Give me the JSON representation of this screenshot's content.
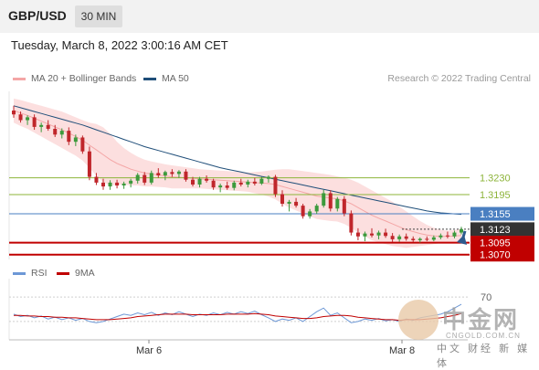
{
  "header": {
    "pair": "GBP/USD",
    "timeframe": "30 MIN"
  },
  "datetime": "Tuesday, March 8, 2022 3:00:16 AM CET",
  "legend": {
    "ma20_label": "MA 20 + Bollinger Bands",
    "ma50_label": "MA 50",
    "research": "Research © 2022 Trading Central"
  },
  "rsi_legend": {
    "rsi_label": "RSI",
    "ma_label": "9MA"
  },
  "colors": {
    "ma20": "#f4a6a6",
    "ma50": "#1f4e79",
    "bollinger_fill": "#fbd9d9",
    "support": "#c00000",
    "resistance_green": "#8db43a",
    "pivot_blue": "#4a7fc1",
    "current_price_bg": "#333333",
    "candle_up": "#3c9a3c",
    "candle_down": "#c0262b",
    "arrow": "#2e5a8e",
    "rsi": "#6d98d6",
    "rsi_ma": "#c00000"
  },
  "icons": {
    "watermark": "zhongjin-logo-icon",
    "trend_arrow": "down-arrow-icon"
  },
  "watermark": {
    "cn": "中金网",
    "en": "CNGOLD.COM.CN",
    "sub": "中文 财经 新 媒 体"
  },
  "chart_data": {
    "type": "candlestick",
    "title": "GBP/USD",
    "price_levels": [
      {
        "value": "1.3230",
        "kind": "resistance",
        "color": "green"
      },
      {
        "value": "1.3195",
        "kind": "resistance",
        "color": "green"
      },
      {
        "value": "1.3155",
        "kind": "pivot",
        "color": "blue"
      },
      {
        "value": "1.3123",
        "kind": "current",
        "color": "dark"
      },
      {
        "value": "1.3095",
        "kind": "support",
        "color": "red"
      },
      {
        "value": "1.3070",
        "kind": "support",
        "color": "red"
      }
    ],
    "ylim": [
      1.306,
      1.341
    ],
    "x_ticks": [
      "Mar 6",
      "Mar 8"
    ],
    "ohlc": [
      [
        1.337,
        1.338,
        1.3355,
        1.3362
      ],
      [
        1.3362,
        1.3368,
        1.3345,
        1.335
      ],
      [
        1.335,
        1.336,
        1.334,
        1.3356
      ],
      [
        1.3356,
        1.3362,
        1.333,
        1.3336
      ],
      [
        1.3336,
        1.3345,
        1.3325,
        1.334
      ],
      [
        1.334,
        1.335,
        1.3328,
        1.3332
      ],
      [
        1.3332,
        1.334,
        1.3315,
        1.332
      ],
      [
        1.332,
        1.3333,
        1.3312,
        1.3328
      ],
      [
        1.3328,
        1.3335,
        1.3298,
        1.3305
      ],
      [
        1.3305,
        1.332,
        1.3296,
        1.3314
      ],
      [
        1.3314,
        1.3318,
        1.328,
        1.3285
      ],
      [
        1.3285,
        1.3295,
        1.3225,
        1.3232
      ],
      [
        1.3232,
        1.324,
        1.3215,
        1.322
      ],
      [
        1.322,
        1.3228,
        1.3205,
        1.3212
      ],
      [
        1.3212,
        1.3225,
        1.3205,
        1.322
      ],
      [
        1.322,
        1.3226,
        1.3208,
        1.3214
      ],
      [
        1.3214,
        1.3222,
        1.3207,
        1.3218
      ],
      [
        1.3218,
        1.3228,
        1.321,
        1.3224
      ],
      [
        1.3224,
        1.324,
        1.3218,
        1.3236
      ],
      [
        1.3236,
        1.3242,
        1.3215,
        1.322
      ],
      [
        1.322,
        1.3245,
        1.3216,
        1.324
      ],
      [
        1.324,
        1.325,
        1.323,
        1.3235
      ],
      [
        1.3235,
        1.3245,
        1.3225,
        1.3242
      ],
      [
        1.3242,
        1.3248,
        1.3232,
        1.3238
      ],
      [
        1.3238,
        1.3246,
        1.323,
        1.3243
      ],
      [
        1.3243,
        1.3248,
        1.3222,
        1.3226
      ],
      [
        1.3226,
        1.3232,
        1.3212,
        1.3216
      ],
      [
        1.3216,
        1.3232,
        1.321,
        1.3228
      ],
      [
        1.3228,
        1.3235,
        1.322,
        1.3224
      ],
      [
        1.3224,
        1.3228,
        1.3205,
        1.321
      ],
      [
        1.321,
        1.3218,
        1.32,
        1.3214
      ],
      [
        1.3214,
        1.3222,
        1.3205,
        1.3209
      ],
      [
        1.3209,
        1.3224,
        1.3204,
        1.322
      ],
      [
        1.322,
        1.3228,
        1.3212,
        1.3216
      ],
      [
        1.3216,
        1.3226,
        1.321,
        1.3222
      ],
      [
        1.3222,
        1.323,
        1.3214,
        1.3218
      ],
      [
        1.3218,
        1.3232,
        1.3215,
        1.3228
      ],
      [
        1.3228,
        1.3235,
        1.322,
        1.3232
      ],
      [
        1.3232,
        1.3236,
        1.319,
        1.3196
      ],
      [
        1.3196,
        1.3204,
        1.317,
        1.3176
      ],
      [
        1.3176,
        1.3184,
        1.316,
        1.318
      ],
      [
        1.318,
        1.3188,
        1.3168,
        1.3172
      ],
      [
        1.3172,
        1.3176,
        1.3145,
        1.315
      ],
      [
        1.315,
        1.3165,
        1.3145,
        1.316
      ],
      [
        1.316,
        1.3176,
        1.3155,
        1.3172
      ],
      [
        1.3172,
        1.3205,
        1.3168,
        1.3198
      ],
      [
        1.3198,
        1.3204,
        1.316,
        1.3166
      ],
      [
        1.3166,
        1.319,
        1.316,
        1.3186
      ],
      [
        1.3186,
        1.3192,
        1.315,
        1.3156
      ],
      [
        1.3156,
        1.3162,
        1.311,
        1.3116
      ],
      [
        1.3116,
        1.3125,
        1.31,
        1.3108
      ],
      [
        1.3108,
        1.3118,
        1.3098,
        1.3114
      ],
      [
        1.3114,
        1.3125,
        1.3106,
        1.311
      ],
      [
        1.311,
        1.312,
        1.3102,
        1.3116
      ],
      [
        1.3116,
        1.3124,
        1.3105,
        1.3109
      ],
      [
        1.3109,
        1.3115,
        1.3096,
        1.3102
      ],
      [
        1.3102,
        1.3112,
        1.3097,
        1.3108
      ],
      [
        1.3108,
        1.3114,
        1.3099,
        1.3103
      ],
      [
        1.3103,
        1.3108,
        1.3096,
        1.31
      ],
      [
        1.31,
        1.3106,
        1.3095,
        1.3103
      ],
      [
        1.3103,
        1.3108,
        1.3098,
        1.3101
      ],
      [
        1.3101,
        1.311,
        1.3098,
        1.3106
      ],
      [
        1.3106,
        1.3114,
        1.3102,
        1.311
      ],
      [
        1.311,
        1.3118,
        1.3104,
        1.3108
      ],
      [
        1.3108,
        1.312,
        1.3104,
        1.3116
      ],
      [
        1.3116,
        1.3128,
        1.3112,
        1.3123
      ]
    ],
    "ma20": [
      1.337,
      1.3365,
      1.336,
      1.3354,
      1.3348,
      1.3342,
      1.3336,
      1.333,
      1.3323,
      1.3316,
      1.3308,
      1.3298,
      1.3288,
      1.3278,
      1.3268,
      1.326,
      1.3254,
      1.3248,
      1.3244,
      1.324,
      1.3238,
      1.3236,
      1.3234,
      1.3232,
      1.3231,
      1.323,
      1.3229,
      1.3228,
      1.3227,
      1.3226,
      1.3225,
      1.3224,
      1.3223,
      1.3222,
      1.3221,
      1.322,
      1.3219,
      1.3218,
      1.3216,
      1.3212,
      1.3208,
      1.3204,
      1.32,
      1.3196,
      1.3192,
      1.319,
      1.3188,
      1.3186,
      1.3182,
      1.3176,
      1.3168,
      1.316,
      1.3152,
      1.3146,
      1.314,
      1.3134,
      1.3128,
      1.3122,
      1.3118,
      1.3114,
      1.3111,
      1.3109,
      1.3108,
      1.3108,
      1.3109,
      1.311
    ],
    "bb_upper": [
      1.3395,
      1.3392,
      1.3388,
      1.3384,
      1.338,
      1.3376,
      1.3372,
      1.3368,
      1.3362,
      1.3356,
      1.335,
      1.3345,
      1.3342,
      1.3335,
      1.3322,
      1.3305,
      1.3292,
      1.3282,
      1.3274,
      1.3268,
      1.3264,
      1.3261,
      1.3258,
      1.3256,
      1.3254,
      1.3252,
      1.325,
      1.3248,
      1.3247,
      1.3246,
      1.3245,
      1.3244,
      1.3243,
      1.3242,
      1.3241,
      1.3242,
      1.3243,
      1.3245,
      1.3247,
      1.3248,
      1.3248,
      1.3246,
      1.3244,
      1.3242,
      1.324,
      1.3238,
      1.3236,
      1.3233,
      1.323,
      1.3226,
      1.322,
      1.3212,
      1.3204,
      1.3196,
      1.3188,
      1.318,
      1.317,
      1.316,
      1.315,
      1.314,
      1.3132,
      1.3126,
      1.3122,
      1.312,
      1.3121,
      1.3124
    ],
    "bb_lower": [
      1.3345,
      1.3338,
      1.3332,
      1.3324,
      1.3316,
      1.3308,
      1.33,
      1.3292,
      1.3284,
      1.3276,
      1.3266,
      1.3251,
      1.3234,
      1.3221,
      1.3214,
      1.3215,
      1.3216,
      1.3214,
      1.3214,
      1.3212,
      1.3212,
      1.3211,
      1.321,
      1.3208,
      1.3208,
      1.3208,
      1.3208,
      1.3208,
      1.3207,
      1.3206,
      1.3205,
      1.3204,
      1.3203,
      1.3202,
      1.3201,
      1.3198,
      1.3195,
      1.3191,
      1.3185,
      1.3176,
      1.3168,
      1.3162,
      1.3156,
      1.315,
      1.3144,
      1.3142,
      1.314,
      1.3139,
      1.3134,
      1.3126,
      1.3116,
      1.3108,
      1.31,
      1.3096,
      1.3092,
      1.3088,
      1.3086,
      1.3084,
      1.3086,
      1.3088,
      1.309,
      1.3092,
      1.3094,
      1.3096,
      1.3097,
      1.3096
    ],
    "ma50": [
      1.338,
      1.3376,
      1.3372,
      1.3368,
      1.3364,
      1.336,
      1.3356,
      1.3352,
      1.3348,
      1.3344,
      1.334,
      1.3335,
      1.333,
      1.3325,
      1.332,
      1.3315,
      1.331,
      1.3305,
      1.33,
      1.3295,
      1.3291,
      1.3287,
      1.3283,
      1.3279,
      1.3275,
      1.3271,
      1.3267,
      1.3263,
      1.3259,
      1.3255,
      1.3251,
      1.3248,
      1.3245,
      1.3242,
      1.3239,
      1.3236,
      1.3233,
      1.323,
      1.3227,
      1.3224,
      1.3221,
      1.3218,
      1.3215,
      1.3212,
      1.3209,
      1.3206,
      1.3203,
      1.32,
      1.3197,
      1.3194,
      1.3191,
      1.3188,
      1.3185,
      1.3182,
      1.3179,
      1.3176,
      1.3173,
      1.317,
      1.3167,
      1.3164,
      1.3161,
      1.3159,
      1.3157,
      1.3156,
      1.3155,
      1.3154
    ],
    "rsi_ticks": [
      "70"
    ],
    "rsi_ylim": [
      0,
      100
    ],
    "rsi": [
      42,
      38,
      40,
      36,
      39,
      34,
      37,
      33,
      36,
      32,
      35,
      30,
      28,
      30,
      34,
      38,
      42,
      40,
      44,
      41,
      45,
      40,
      44,
      41,
      46,
      42,
      38,
      42,
      40,
      44,
      41,
      45,
      42,
      46,
      43,
      47,
      41,
      36,
      30,
      34,
      32,
      36,
      30,
      38,
      46,
      52,
      40,
      44,
      36,
      28,
      30,
      34,
      32,
      35,
      31,
      33,
      30,
      34,
      32,
      36,
      38,
      40,
      42,
      46,
      52,
      58
    ],
    "rsi_ma": [
      40,
      40,
      39,
      39,
      38,
      38,
      37,
      37,
      36,
      36,
      35,
      34,
      33,
      33,
      33,
      34,
      35,
      36,
      38,
      39,
      40,
      41,
      42,
      42,
      42,
      42,
      41,
      41,
      41,
      41,
      41,
      42,
      42,
      42,
      42,
      43,
      42,
      41,
      39,
      38,
      37,
      36,
      35,
      35,
      36,
      38,
      39,
      40,
      40,
      39,
      37,
      36,
      35,
      34,
      33,
      33,
      32,
      33,
      33,
      33,
      34,
      35,
      36,
      38,
      40,
      43
    ]
  }
}
